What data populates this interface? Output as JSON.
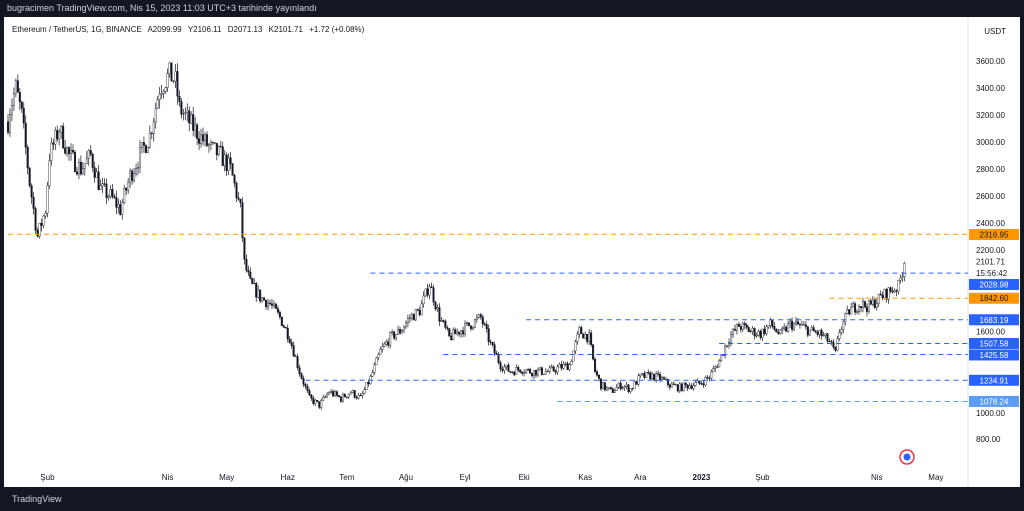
{
  "topbar": {
    "text": "bugracimen TradingView.com, Nis 15, 2023 11:03 UTC+3 tarihinde yayınlandı"
  },
  "legend": {
    "symbol": "Ethereum / TetherUS, 1G, BINANCE",
    "open": "A2099.99",
    "high": "Y2106.11",
    "low": "D2071.13",
    "close": "K2101.71",
    "change": "+1.72 (+0.08%)"
  },
  "currency": "USDT",
  "footer": {
    "brand": "TradingView"
  },
  "chart_data": {
    "type": "candlestick",
    "y_ticks": [
      3600,
      3400,
      3200,
      3000,
      2800,
      2600,
      2400,
      2200,
      1600,
      1000,
      800
    ],
    "y_tick_labels": [
      "3600.00",
      "3400.00",
      "3200.00",
      "3000.00",
      "2800.00",
      "2600.00",
      "2400.00",
      "2200.00",
      "1600.00",
      "1000.00",
      "800.00"
    ],
    "x_ticks": [
      {
        "label": "Şub",
        "day": 20
      },
      {
        "label": "Nis",
        "day": 81
      },
      {
        "label": "May",
        "day": 111
      },
      {
        "label": "Haz",
        "day": 142
      },
      {
        "label": "Tem",
        "day": 172
      },
      {
        "label": "Ağu",
        "day": 202
      },
      {
        "label": "Eyl",
        "day": 232
      },
      {
        "label": "Eki",
        "day": 262
      },
      {
        "label": "Kas",
        "day": 293
      },
      {
        "label": "Ara",
        "day": 321
      },
      {
        "label": "2023",
        "day": 352,
        "bold": true
      },
      {
        "label": "Şub",
        "day": 383
      },
      {
        "label": "Nis",
        "day": 441
      },
      {
        "label": "May",
        "day": 471
      }
    ],
    "last_price": {
      "value": "2101.71",
      "countdown": "15:56:42",
      "price": 2101.71
    },
    "levels": [
      {
        "value": 2316.95,
        "label": "2316.95",
        "color": "#ff9800",
        "from_day": 0
      },
      {
        "value": 2028.98,
        "label": "2028.98",
        "color": "#2962ff",
        "from_day": 184
      },
      {
        "value": 1842.6,
        "label": "1842.60",
        "color": "#ff9800",
        "from_day": 417
      },
      {
        "value": 1683.19,
        "label": "1683.19",
        "color": "#2962ff",
        "from_day": 263
      },
      {
        "value": 1507.58,
        "label": "1507.58",
        "color": "#2962ff",
        "from_day": 361
      },
      {
        "value": 1425.58,
        "label": "1425.58",
        "color": "#2962ff",
        "from_day": 221
      },
      {
        "value": 1234.91,
        "label": "1234.91",
        "color": "#2962ff",
        "from_day": 151
      },
      {
        "value": 1078.24,
        "label": "1078.24",
        "color": "#5b9cf6",
        "from_day": 279
      }
    ],
    "path": [
      [
        0,
        3150
      ],
      [
        1,
        3250
      ],
      [
        4,
        3400
      ],
      [
        7,
        3200
      ],
      [
        11,
        2700
      ],
      [
        15,
        2300
      ],
      [
        19,
        2500
      ],
      [
        21,
        2900
      ],
      [
        26,
        3100
      ],
      [
        31,
        2900
      ],
      [
        37,
        2800
      ],
      [
        42,
        2900
      ],
      [
        47,
        2650
      ],
      [
        52,
        2600
      ],
      [
        57,
        2500
      ],
      [
        62,
        2750
      ],
      [
        67,
        2900
      ],
      [
        72,
        3050
      ],
      [
        77,
        3400
      ],
      [
        82,
        3500
      ],
      [
        85,
        3450
      ],
      [
        87,
        3250
      ],
      [
        92,
        3150
      ],
      [
        97,
        3050
      ],
      [
        103,
        2950
      ],
      [
        108,
        2900
      ],
      [
        113,
        2800
      ],
      [
        118,
        2500
      ],
      [
        120,
        2100
      ],
      [
        123,
        1950
      ],
      [
        128,
        1850
      ],
      [
        133,
        1800
      ],
      [
        138,
        1700
      ],
      [
        143,
        1550
      ],
      [
        148,
        1300
      ],
      [
        153,
        1100
      ],
      [
        158,
        1050
      ],
      [
        163,
        1150
      ],
      [
        169,
        1100
      ],
      [
        174,
        1150
      ],
      [
        179,
        1100
      ],
      [
        184,
        1250
      ],
      [
        189,
        1450
      ],
      [
        194,
        1550
      ],
      [
        199,
        1600
      ],
      [
        204,
        1700
      ],
      [
        209,
        1750
      ],
      [
        214,
        1950
      ],
      [
        219,
        1700
      ],
      [
        224,
        1550
      ],
      [
        229,
        1600
      ],
      [
        235,
        1650
      ],
      [
        240,
        1700
      ],
      [
        245,
        1500
      ],
      [
        250,
        1350
      ],
      [
        255,
        1300
      ],
      [
        260,
        1320
      ],
      [
        265,
        1300
      ],
      [
        275,
        1300
      ],
      [
        280,
        1330
      ],
      [
        285,
        1350
      ],
      [
        290,
        1600
      ],
      [
        295,
        1550
      ],
      [
        298,
        1300
      ],
      [
        301,
        1200
      ],
      [
        306,
        1150
      ],
      [
        311,
        1200
      ],
      [
        316,
        1170
      ],
      [
        321,
        1260
      ],
      [
        326,
        1270
      ],
      [
        331,
        1250
      ],
      [
        336,
        1200
      ],
      [
        341,
        1180
      ],
      [
        346,
        1200
      ],
      [
        351,
        1210
      ],
      [
        356,
        1260
      ],
      [
        361,
        1380
      ],
      [
        366,
        1550
      ],
      [
        371,
        1640
      ],
      [
        377,
        1600
      ],
      [
        382,
        1580
      ],
      [
        387,
        1650
      ],
      [
        392,
        1570
      ],
      [
        397,
        1650
      ],
      [
        402,
        1640
      ],
      [
        407,
        1600
      ],
      [
        412,
        1580
      ],
      [
        417,
        1520
      ],
      [
        420,
        1430
      ],
      [
        422,
        1600
      ],
      [
        427,
        1750
      ],
      [
        432,
        1800
      ],
      [
        437,
        1780
      ],
      [
        443,
        1850
      ],
      [
        448,
        1900
      ],
      [
        452,
        1930
      ],
      [
        455,
        2101.71
      ]
    ]
  }
}
